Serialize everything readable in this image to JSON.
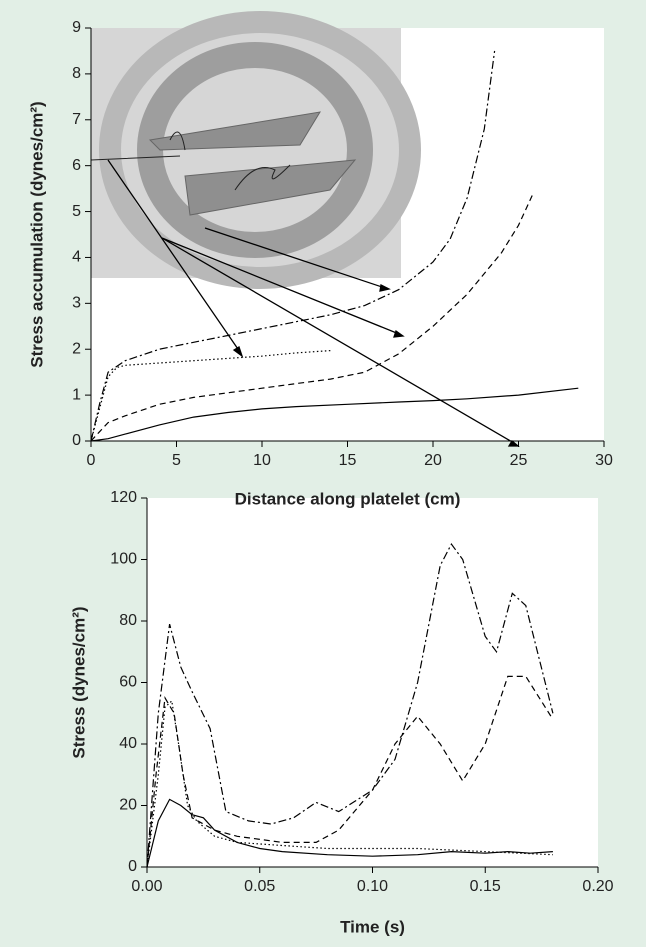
{
  "chart_data": [
    {
      "type": "line",
      "xlabel": "Distance along platelet (cm)",
      "ylabel": "Stress accumulation (dynes/cm²)",
      "xlim": [
        0,
        30
      ],
      "ylim": [
        0,
        9
      ],
      "xticks": [
        0,
        5,
        10,
        15,
        20,
        25,
        30
      ],
      "yticks": [
        0,
        1,
        2,
        3,
        4,
        5,
        6,
        7,
        8,
        9
      ],
      "series": [
        {
          "color": "#000000",
          "line_style": "solid",
          "x": [
            0,
            1,
            2,
            4,
            6,
            8,
            10,
            12,
            15,
            18,
            20,
            22,
            25,
            28.5
          ],
          "values": [
            0,
            0.05,
            0.15,
            0.35,
            0.52,
            0.62,
            0.7,
            0.75,
            0.8,
            0.85,
            0.88,
            0.92,
            1.0,
            1.15
          ]
        },
        {
          "color": "#000000",
          "line_style": "dotted",
          "x": [
            0,
            0.5,
            1,
            1.5,
            2,
            4,
            6,
            8,
            10,
            12,
            14
          ],
          "values": [
            0,
            0.7,
            1.4,
            1.6,
            1.65,
            1.7,
            1.75,
            1.8,
            1.85,
            1.92,
            1.97
          ]
        },
        {
          "color": "#000000",
          "line_style": "dashed",
          "x": [
            0,
            0.5,
            1,
            2,
            4,
            6,
            8,
            10,
            12,
            14,
            16,
            18,
            20,
            22,
            24,
            25,
            25.8
          ],
          "values": [
            0,
            0.2,
            0.4,
            0.55,
            0.8,
            0.95,
            1.05,
            1.15,
            1.25,
            1.35,
            1.5,
            1.9,
            2.5,
            3.2,
            4.1,
            4.7,
            5.35
          ]
        },
        {
          "color": "#000000",
          "line_style": "dashdot",
          "x": [
            0,
            0.5,
            1,
            2,
            4,
            6,
            8,
            10,
            12,
            14,
            16,
            18,
            20,
            21,
            22,
            23,
            23.6
          ],
          "values": [
            0,
            0.8,
            1.5,
            1.75,
            2.0,
            2.15,
            2.3,
            2.45,
            2.6,
            2.75,
            2.95,
            3.3,
            3.9,
            4.4,
            5.3,
            6.8,
            8.5
          ]
        }
      ]
    },
    {
      "type": "line",
      "xlabel": "Time (s)",
      "ylabel": "Stress (dynes/cm²)",
      "xlim": [
        0,
        0.2
      ],
      "ylim": [
        0,
        120
      ],
      "xticks": [
        {
          "value": 0,
          "label": "0.00"
        },
        0.05,
        {
          "value": 0.1,
          "label": "0.10"
        },
        0.15,
        {
          "value": 0.2,
          "label": "0.20"
        }
      ],
      "yticks": [
        0,
        20,
        40,
        60,
        80,
        100,
        120
      ],
      "series": [
        {
          "color": "#000000",
          "line_style": "solid",
          "x": [
            0,
            0.005,
            0.01,
            0.015,
            0.02,
            0.025,
            0.03,
            0.04,
            0.05,
            0.06,
            0.08,
            0.1,
            0.12,
            0.135,
            0.15,
            0.16,
            0.17,
            0.18
          ],
          "values": [
            0,
            15,
            22,
            20,
            17,
            16,
            12,
            8,
            6,
            5,
            4,
            3.5,
            4,
            5,
            4.5,
            5,
            4.5,
            5
          ]
        },
        {
          "color": "#000000",
          "line_style": "dotted",
          "x": [
            0,
            0.005,
            0.008,
            0.011,
            0.014,
            0.018,
            0.022,
            0.03,
            0.04,
            0.06,
            0.08,
            0.1,
            0.12,
            0.15,
            0.18
          ],
          "values": [
            0,
            30,
            52,
            54,
            40,
            20,
            15,
            10,
            8,
            7,
            6,
            6,
            6,
            5,
            4
          ]
        },
        {
          "color": "#000000",
          "line_style": "dashed",
          "x": [
            0,
            0.004,
            0.008,
            0.012,
            0.016,
            0.02,
            0.025,
            0.03,
            0.04,
            0.06,
            0.075,
            0.085,
            0.1,
            0.11,
            0.12,
            0.13,
            0.14,
            0.15,
            0.16,
            0.168,
            0.18
          ],
          "values": [
            0,
            30,
            55,
            50,
            30,
            16,
            14,
            12,
            10,
            8,
            8,
            12,
            25,
            40,
            49,
            40,
            28,
            40,
            62,
            62,
            48
          ]
        },
        {
          "color": "#000000",
          "line_style": "dashdot",
          "x": [
            0,
            0.005,
            0.01,
            0.015,
            0.02,
            0.028,
            0.035,
            0.045,
            0.055,
            0.065,
            0.075,
            0.085,
            0.1,
            0.11,
            0.12,
            0.13,
            0.135,
            0.14,
            0.15,
            0.155,
            0.162,
            0.168,
            0.18
          ],
          "values": [
            0,
            50,
            79,
            65,
            57,
            45,
            18,
            15,
            14,
            16,
            21,
            18,
            25,
            35,
            60,
            98,
            105,
            100,
            75,
            70,
            89,
            85,
            50
          ]
        }
      ]
    }
  ]
}
